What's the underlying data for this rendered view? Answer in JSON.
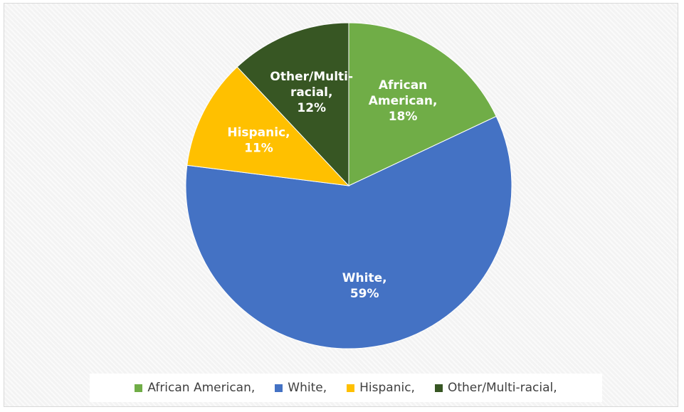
{
  "chart_data": {
    "type": "pie",
    "title": "",
    "legend_position": "bottom",
    "slices": [
      {
        "name": "African American,",
        "value": 18,
        "label_lines": [
          "African",
          "American,",
          "18%"
        ],
        "color": "#70ad47"
      },
      {
        "name": "White,",
        "value": 59,
        "label_lines": [
          "White,",
          "59%"
        ],
        "color": "#4472c4"
      },
      {
        "name": "Hispanic,",
        "value": 11,
        "label_lines": [
          "Hispanic,",
          "11%"
        ],
        "color": "#ffc000"
      },
      {
        "name": "Other/Multi-racial,",
        "value": 12,
        "label_lines": [
          "Other/Multi-",
          "racial,",
          "12%"
        ],
        "color": "#375623"
      }
    ]
  }
}
